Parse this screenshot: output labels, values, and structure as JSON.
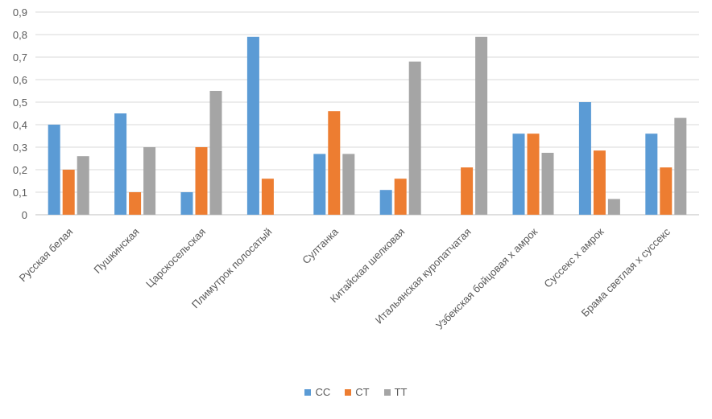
{
  "chart_data": {
    "type": "bar",
    "categories": [
      "Русская белая",
      "Пушкинская",
      "Царскосельская",
      "Плимутрок полосатый",
      "Султанка",
      "Китайская шелковая",
      "Итальянская куропатчатая",
      "Узбекская бойцовая х амрок",
      "Суссекс х амрок",
      "Брама светлая х суссекс"
    ],
    "series": [
      {
        "name": "CC",
        "color": "#5b9bd5",
        "values": [
          0.4,
          0.45,
          0.1,
          0.79,
          0.27,
          0.11,
          0.0,
          0.36,
          0.5,
          0.36
        ]
      },
      {
        "name": "CT",
        "color": "#ed7d31",
        "values": [
          0.2,
          0.1,
          0.3,
          0.16,
          0.46,
          0.16,
          0.21,
          0.36,
          0.285,
          0.21
        ]
      },
      {
        "name": "TT",
        "color": "#a5a5a5",
        "values": [
          0.26,
          0.3,
          0.55,
          0.0,
          0.27,
          0.68,
          0.79,
          0.275,
          0.07,
          0.43
        ]
      }
    ],
    "yticks": [
      "0",
      "0,1",
      "0,2",
      "0,3",
      "0,4",
      "0,5",
      "0,6",
      "0,7",
      "0,8",
      "0,9"
    ],
    "ylim": [
      0,
      0.9
    ],
    "title": "",
    "xlabel": "",
    "ylabel": "",
    "grid": true,
    "legend_position": "bottom"
  }
}
